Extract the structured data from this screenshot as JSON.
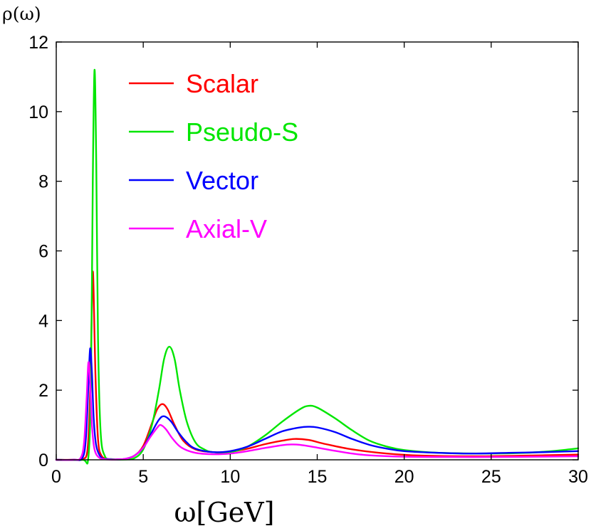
{
  "chart_data": {
    "type": "line",
    "title": "",
    "xlabel": "ω[GeV]",
    "ylabel": "ρ(ω)",
    "xlim": [
      0,
      30
    ],
    "ylim": [
      0,
      12
    ],
    "xticks": [
      0,
      5,
      10,
      15,
      20,
      25,
      30
    ],
    "xtick_labels": [
      "0",
      "5",
      "10",
      "15",
      "20",
      "25",
      "30"
    ],
    "yticks": [
      0,
      2,
      4,
      6,
      8,
      10,
      12
    ],
    "ytick_labels": [
      "0",
      "2",
      "4",
      "6",
      "8",
      "10",
      "12"
    ],
    "grid": false,
    "legend_position": "top-left",
    "series": [
      {
        "name": "Scalar",
        "color": "#ff0000",
        "x": [
          0,
          1.0,
          1.5,
          1.8,
          1.95,
          2.05,
          2.1,
          2.15,
          2.25,
          2.4,
          2.6,
          3.0,
          3.5,
          4.0,
          4.5,
          5.0,
          5.5,
          5.8,
          6.1,
          6.4,
          6.8,
          7.3,
          8.0,
          9.0,
          10.0,
          11.0,
          12.0,
          13.0,
          13.7,
          14.5,
          15.5,
          17.0,
          19.0,
          21.0,
          24.0,
          27.0,
          30.0
        ],
        "y": [
          0,
          0,
          0.02,
          0.3,
          2.0,
          4.5,
          5.4,
          4.8,
          2.5,
          0.6,
          0.12,
          0.02,
          0.01,
          0.03,
          0.12,
          0.4,
          1.05,
          1.45,
          1.6,
          1.45,
          1.0,
          0.55,
          0.3,
          0.22,
          0.23,
          0.32,
          0.45,
          0.55,
          0.6,
          0.57,
          0.45,
          0.3,
          0.18,
          0.12,
          0.1,
          0.12,
          0.15
        ]
      },
      {
        "name": "Pseudo-S",
        "color": "#00e600",
        "x": [
          0,
          1.5,
          1.85,
          2.0,
          2.1,
          2.2,
          2.3,
          2.4,
          2.55,
          2.8,
          3.2,
          4.0,
          4.5,
          5.0,
          5.5,
          5.9,
          6.2,
          6.5,
          6.8,
          7.1,
          7.5,
          8.0,
          8.5,
          9.0,
          10.0,
          11.0,
          12.0,
          13.0,
          14.0,
          14.5,
          15.0,
          16.0,
          17.0,
          18.0,
          19.0,
          20.0,
          22.0,
          25.0,
          27.0,
          28.5,
          29.5,
          30.0
        ],
        "y": [
          0,
          0,
          0.1,
          2.5,
          8.0,
          11.2,
          8.5,
          3.5,
          0.8,
          0.1,
          0.02,
          0.01,
          0.05,
          0.3,
          1.0,
          2.0,
          2.9,
          3.25,
          2.9,
          2.0,
          1.1,
          0.5,
          0.3,
          0.22,
          0.22,
          0.38,
          0.7,
          1.1,
          1.45,
          1.55,
          1.5,
          1.2,
          0.85,
          0.55,
          0.38,
          0.28,
          0.2,
          0.18,
          0.2,
          0.25,
          0.3,
          0.33
        ]
      },
      {
        "name": "Vector",
        "color": "#0000ff",
        "x": [
          0,
          1.0,
          1.5,
          1.7,
          1.85,
          1.95,
          2.05,
          2.15,
          2.3,
          2.6,
          3.0,
          3.5,
          4.0,
          4.5,
          5.0,
          5.5,
          5.9,
          6.2,
          6.6,
          7.0,
          7.5,
          8.0,
          9.0,
          10.0,
          11.0,
          12.0,
          13.0,
          14.0,
          14.5,
          15.0,
          16.0,
          17.0,
          18.0,
          19.0,
          20.0,
          22.0,
          24.0,
          26.0,
          28.0,
          30.0
        ],
        "y": [
          0,
          0,
          0.05,
          0.6,
          2.2,
          3.2,
          2.5,
          1.2,
          0.4,
          0.06,
          0.02,
          0.01,
          0.03,
          0.12,
          0.35,
          0.8,
          1.15,
          1.25,
          1.1,
          0.8,
          0.5,
          0.32,
          0.22,
          0.25,
          0.38,
          0.6,
          0.82,
          0.93,
          0.95,
          0.93,
          0.8,
          0.6,
          0.43,
          0.32,
          0.25,
          0.2,
          0.18,
          0.2,
          0.22,
          0.25
        ]
      },
      {
        "name": "Axial-V",
        "color": "#ff00ff",
        "x": [
          0,
          1.0,
          1.4,
          1.6,
          1.75,
          1.85,
          1.95,
          2.05,
          2.2,
          2.5,
          3.0,
          3.5,
          4.0,
          4.5,
          5.0,
          5.4,
          5.8,
          6.0,
          6.3,
          6.7,
          7.2,
          8.0,
          9.0,
          10.0,
          11.0,
          12.0,
          13.0,
          13.5,
          14.0,
          15.0,
          16.0,
          17.0,
          18.0,
          20.0,
          22.0,
          25.0,
          28.0,
          30.0
        ],
        "y": [
          0,
          0,
          0.05,
          0.5,
          1.8,
          2.8,
          2.2,
          1.0,
          0.3,
          0.05,
          0.01,
          0.01,
          0.03,
          0.12,
          0.35,
          0.65,
          0.92,
          1.0,
          0.88,
          0.6,
          0.35,
          0.2,
          0.16,
          0.18,
          0.25,
          0.34,
          0.42,
          0.44,
          0.43,
          0.35,
          0.26,
          0.18,
          0.13,
          0.09,
          0.08,
          0.08,
          0.09,
          0.1
        ]
      }
    ]
  }
}
